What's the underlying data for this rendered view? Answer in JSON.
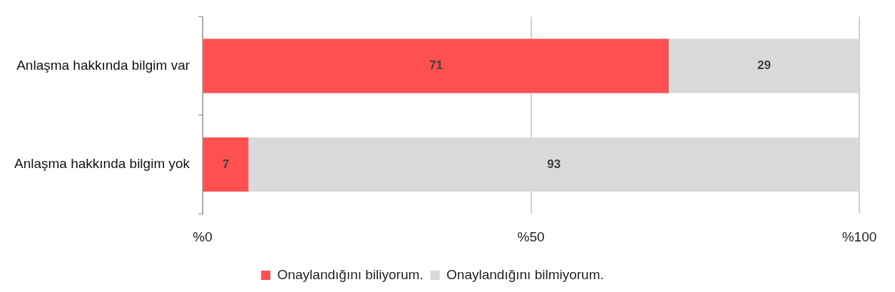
{
  "chart_data": {
    "type": "bar",
    "orientation": "horizontal",
    "stacked": true,
    "categories": [
      "Anlaşma hakkında bilgim var",
      "Anlaşma hakkında bilgim yok"
    ],
    "series": [
      {
        "name": "Onaylandığını biliyorum.",
        "color": "#ff5050",
        "values": [
          71,
          7
        ]
      },
      {
        "name": "Onaylandığını bilmiyorum.",
        "color": "#d9d9d9",
        "values": [
          29,
          93
        ]
      }
    ],
    "xlim": [
      0,
      100
    ],
    "xticks": [
      {
        "value": 0,
        "label": "%0"
      },
      {
        "value": 50,
        "label": "%50"
      },
      {
        "value": 100,
        "label": "%100"
      }
    ],
    "grid": "x",
    "legend": "bottom",
    "data_labels": true
  }
}
